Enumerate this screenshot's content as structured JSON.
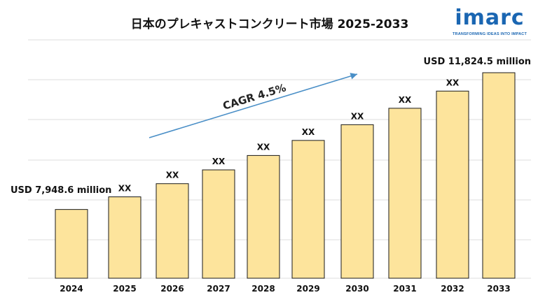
{
  "logo": {
    "wordmark": "imarc",
    "tagline": "TRANSFORMING IDEAS INTO IMPACT",
    "color": "#1a66b2",
    "accent_color": "#2bb3e6"
  },
  "chart_data": {
    "type": "bar",
    "title": "日本のプレキャストコンクリート市場 2025-2033",
    "xlabel": "",
    "ylabel": "",
    "categories": [
      "2024",
      "2025",
      "2026",
      "2027",
      "2028",
      "2029",
      "2030",
      "2031",
      "2032",
      "2033"
    ],
    "values": [
      7948.6,
      8306.3,
      8680.0,
      9070.6,
      9478.8,
      9905.4,
      10351.1,
      10816.9,
      11303.7,
      11824.5
    ],
    "data_labels": [
      "",
      "XX",
      "XX",
      "XX",
      "XX",
      "XX",
      "XX",
      "XX",
      "XX",
      ""
    ],
    "ylim": [
      6000,
      12500
    ],
    "grid": true,
    "bar_color": "#fde49c",
    "bar_edge_color": "#1a1a1a",
    "annotations": {
      "start": "USD 7,948.6 million",
      "end": "USD 11,824.5 million",
      "cagr": "CAGR 4.5%"
    },
    "arrow_color": "#4a8fc7"
  }
}
